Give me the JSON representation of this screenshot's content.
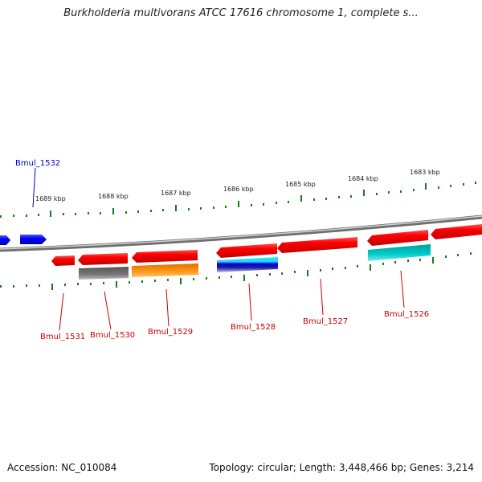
{
  "title": "Burkholderia multivorans ATCC 17616 chromosome 1, complete s...",
  "footer": {
    "accession": "Accession: NC_010084",
    "summary": "Topology: circular; Length: 3,448,466 bp; Genes: 3,214"
  },
  "ruler_labels": [
    "1689 kbp",
    "1688 kbp",
    "1687 kbp",
    "1686 kbp",
    "1685 kbp",
    "1684 kbp",
    "1683 kbp"
  ],
  "genes": [
    {
      "name": "Bmul_1532",
      "strand": "forward",
      "color": "#0000cc"
    },
    {
      "name": "Bmul_1531",
      "strand": "reverse",
      "color": "#cc0000"
    },
    {
      "name": "Bmul_1530",
      "strand": "reverse",
      "color": "#cc0000"
    },
    {
      "name": "Bmul_1529",
      "strand": "reverse",
      "color": "#cc0000"
    },
    {
      "name": "Bmul_1528",
      "strand": "reverse",
      "color": "#cc0000"
    },
    {
      "name": "Bmul_1527",
      "strand": "reverse",
      "color": "#cc0000"
    },
    {
      "name": "Bmul_1526",
      "strand": "reverse",
      "color": "#cc0000"
    }
  ],
  "colors": {
    "cds_forward": "#0000ff",
    "cds_reverse": "#ff0000",
    "feature_gray": "#666666",
    "feature_orange": "#ff8c00",
    "feature_cyan": "#00cccc",
    "feature_blue": "#0000aa",
    "tick": "#1a7a1a",
    "backbone": "#888888"
  }
}
